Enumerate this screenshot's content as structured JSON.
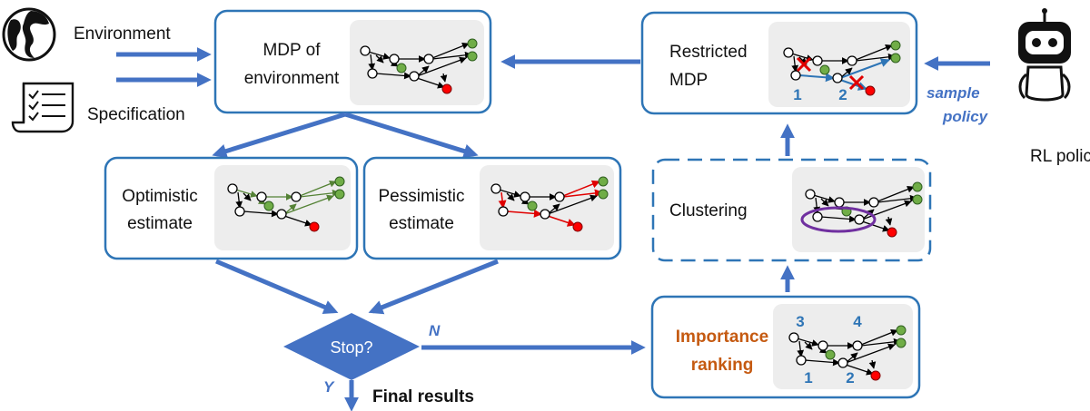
{
  "inputs": {
    "environment": "Environment",
    "specification": "Specification",
    "rl_policy": "RL policy"
  },
  "boxes": {
    "mdp_env": [
      "MDP of",
      "environment"
    ],
    "optimistic": [
      "Optimistic",
      "estimate"
    ],
    "pessimistic": [
      "Pessimistic",
      "estimate"
    ],
    "restricted": [
      "Restricted",
      "MDP"
    ],
    "clustering": [
      "Clustering"
    ],
    "importance": [
      "Importance",
      "ranking"
    ]
  },
  "decision": {
    "label": "Stop?",
    "no_label": "N",
    "yes_label": "Y",
    "final": "Final results"
  },
  "sample_policy": [
    "sample",
    "policy"
  ],
  "rank_labels": {
    "importance": [
      "3",
      "4",
      "1",
      "2"
    ],
    "restricted": [
      "1",
      "2"
    ]
  },
  "colors": {
    "box_border": "#2e75b6",
    "flow_arrow": "#4472c4",
    "goal_state": "#70ad47",
    "bad_state": "#ff0000",
    "optimistic_edges": "#548235",
    "pessimistic_edges": "#e00000",
    "importance_text": "#c55a11",
    "cluster_ellipse": "#7030a0"
  },
  "icons": [
    "globe-icon",
    "scroll-icon",
    "robot-icon",
    "cross-icon"
  ]
}
